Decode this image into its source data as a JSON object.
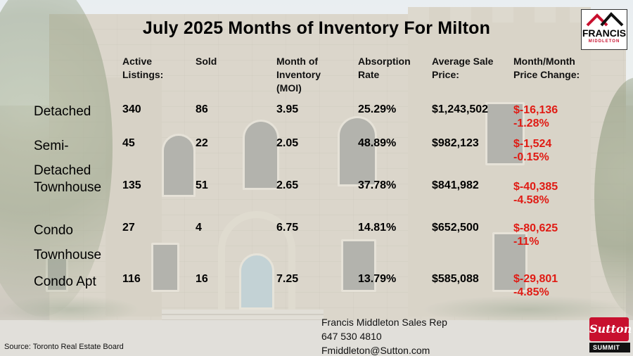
{
  "title": "July 2025 Months of Inventory For Milton",
  "columns": {
    "active_listings": [
      "Active",
      "Listings:"
    ],
    "sold": [
      "Sold"
    ],
    "moi": [
      "Month of",
      "Inventory",
      "(MOI)"
    ],
    "absorption": [
      "Absorption",
      "Rate"
    ],
    "avg_price": [
      "Average Sale",
      "Price:"
    ],
    "mom_change": [
      "Month/Month",
      "Price Change:"
    ]
  },
  "rows": [
    {
      "label": [
        "Detached"
      ],
      "active": "340",
      "sold": "86",
      "moi": "3.95",
      "absorption": "25.29%",
      "avg_price": "$1,243,502",
      "change": "$-16,136",
      "change_pct": "-1.28%"
    },
    {
      "label": [
        "Semi-",
        "Detached"
      ],
      "active": "45",
      "sold": "22",
      "moi": "2.05",
      "absorption": "48.89%",
      "avg_price": "$982,123",
      "change": "$-1,524",
      "change_pct": "-0.15%"
    },
    {
      "label": [
        "Townhouse"
      ],
      "active": "135",
      "sold": "51",
      "moi": "2.65",
      "absorption": "37.78%",
      "avg_price": "$841,982",
      "change": "$-40,385",
      "change_pct": "-4.58%"
    },
    {
      "label": [
        "Condo",
        "Townhouse"
      ],
      "active": "27",
      "sold": "4",
      "moi": "6.75",
      "absorption": "14.81%",
      "avg_price": "$652,500",
      "change": "$-80,625",
      "change_pct": "-11%"
    },
    {
      "label": [
        "Condo Apt"
      ],
      "active": "116",
      "sold": "16",
      "moi": "7.25",
      "absorption": "13.79%",
      "avg_price": "$585,088",
      "change": "$-29,801",
      "change_pct": "-4.85%"
    }
  ],
  "contact": {
    "name": "Francis Middleton Sales Rep",
    "phone": "647 530 4810",
    "email": "Fmiddleton@Sutton.com"
  },
  "source": "Source: Toronto Real Estate Board",
  "logos": {
    "francis_name": "FRANCIS",
    "francis_sub": "MIDDLETON",
    "sutton": "Sutton",
    "summit": "SUMMIT"
  },
  "colors": {
    "change_negative": "#e01b14",
    "brand_red": "#c8102e"
  }
}
